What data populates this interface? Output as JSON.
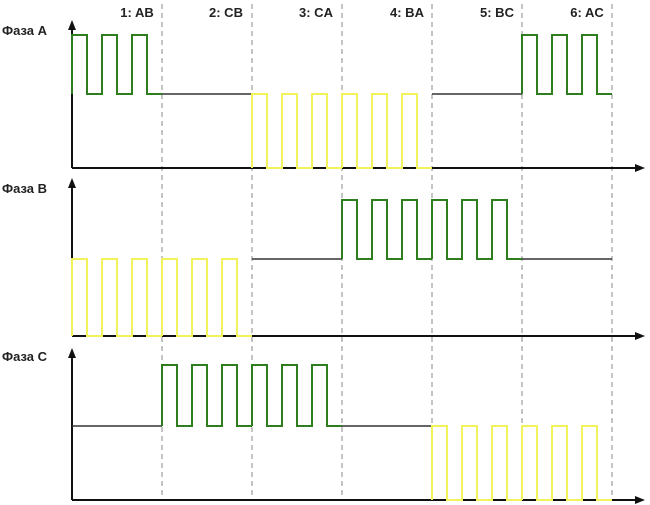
{
  "steps": [
    "1: AB",
    "2: CB",
    "3: CA",
    "4: BA",
    "5: BC",
    "6: AC"
  ],
  "phases": [
    {
      "label": "Фаза A",
      "segments": [
        "high",
        "idle",
        "low",
        "low",
        "idle",
        "high"
      ]
    },
    {
      "label": "Фаза B",
      "segments": [
        "low",
        "low",
        "idle",
        "high",
        "high",
        "idle"
      ]
    },
    {
      "label": "Фаза C",
      "segments": [
        "idle",
        "high",
        "high",
        "idle",
        "low",
        "low"
      ]
    }
  ],
  "colors": {
    "high": "#2e7d1f",
    "low": "#f2f25a",
    "idle": "#333333",
    "axis": "#111111",
    "divider": "#888888"
  }
}
